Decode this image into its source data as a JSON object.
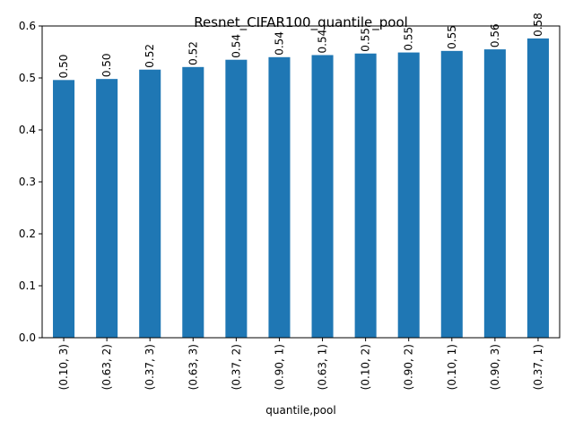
{
  "chart_data": {
    "type": "bar",
    "title": "Resnet_CIFAR100_quantile_pool",
    "xlabel": "quantile,pool",
    "ylabel": "",
    "categories": [
      "(0.10, 3)",
      "(0.63, 2)",
      "(0.37, 3)",
      "(0.63, 3)",
      "(0.37, 2)",
      "(0.90, 1)",
      "(0.63, 1)",
      "(0.10, 2)",
      "(0.90, 2)",
      "(0.10, 1)",
      "(0.90, 3)",
      "(0.37, 1)"
    ],
    "values": [
      0.496,
      0.498,
      0.516,
      0.521,
      0.535,
      0.54,
      0.544,
      0.547,
      0.549,
      0.552,
      0.555,
      0.576
    ],
    "data_labels": [
      "0.50",
      "0.50",
      "0.52",
      "0.52",
      "0.54",
      "0.54",
      "0.54",
      "0.55",
      "0.55",
      "0.55",
      "0.56",
      "0.58"
    ],
    "ylim": [
      0,
      0.6
    ],
    "yticks": [
      "0.0",
      "0.1",
      "0.2",
      "0.3",
      "0.4",
      "0.5",
      "0.6"
    ],
    "bar_color": "#1f77b4",
    "grid": false,
    "legend": "none"
  }
}
